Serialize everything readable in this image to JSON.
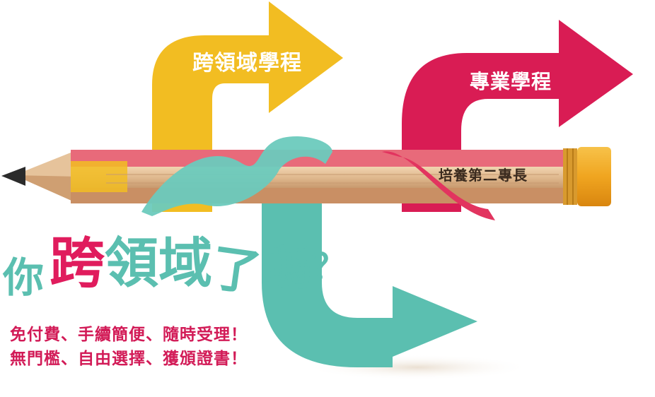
{
  "arrows": {
    "cross_domain": {
      "label": "跨領域學程",
      "color": "#f2bd22"
    },
    "major": {
      "label": "專業學程",
      "color": "#d91c54"
    },
    "teal": {
      "color": "#5bbfb0"
    }
  },
  "pencil": {
    "label": "培養第二專長",
    "wood_color": "#e2bd95",
    "eraser_color": "#f0a92a"
  },
  "headline": {
    "part1": "你",
    "part2": "跨",
    "part3": "領",
    "part4": "域",
    "part5": "了",
    "part6": "嗎",
    "part7": "？",
    "accent_color": "#e01c5d",
    "main_color": "#5bbfb0"
  },
  "subtitle": {
    "line1": "免付費、手續簡便、隨時受理！",
    "line2": "無門檻、自由選擇、獲頒證書！",
    "color": "#d21b57"
  }
}
